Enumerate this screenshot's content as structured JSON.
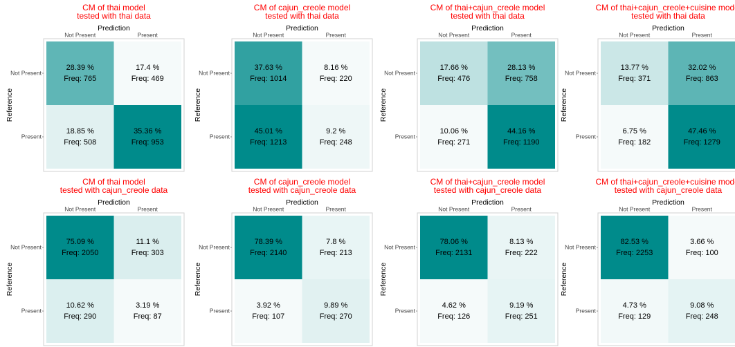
{
  "chart_data": [
    {
      "type": "heatmap",
      "title": [
        "CM of thai model",
        "tested with thai data"
      ],
      "xlabel": "Prediction",
      "ylabel": "Reference",
      "x_categories": [
        "Not Present",
        "Present"
      ],
      "y_categories": [
        "Not Present",
        "Present"
      ],
      "values": [
        [
          765,
          469
        ],
        [
          508,
          953
        ]
      ],
      "value_labels": [
        [
          "Freq: 765",
          "Freq: 469"
        ],
        [
          "Freq: 508",
          "Freq: 953"
        ]
      ],
      "percent": [
        [
          28.39,
          17.4
        ],
        [
          18.85,
          35.36
        ]
      ],
      "percent_labels": [
        [
          "28.39 %",
          "17.4 %"
        ],
        [
          "18.85 %",
          "35.36 %"
        ]
      ],
      "color": "#008b8b"
    },
    {
      "type": "heatmap",
      "title": [
        "CM of cajun_creole model",
        "tested with thai data"
      ],
      "xlabel": "Prediction",
      "ylabel": "Reference",
      "x_categories": [
        "Not Present",
        "Present"
      ],
      "y_categories": [
        "Not Present",
        "Present"
      ],
      "values": [
        [
          1014,
          220
        ],
        [
          1213,
          248
        ]
      ],
      "value_labels": [
        [
          "Freq: 1014",
          "Freq: 220"
        ],
        [
          "Freq: 1213",
          "Freq: 248"
        ]
      ],
      "percent": [
        [
          37.63,
          8.16
        ],
        [
          45.01,
          9.2
        ]
      ],
      "percent_labels": [
        [
          "37.63 %",
          "8.16 %"
        ],
        [
          "45.01 %",
          "9.2 %"
        ]
      ],
      "color": "#008b8b"
    },
    {
      "type": "heatmap",
      "title": [
        "CM of thai+cajun_creole model",
        "tested with thai data"
      ],
      "xlabel": "Prediction",
      "ylabel": "Reference",
      "x_categories": [
        "Not Present",
        "Present"
      ],
      "y_categories": [
        "Not Present",
        "Present"
      ],
      "values": [
        [
          476,
          758
        ],
        [
          271,
          1190
        ]
      ],
      "value_labels": [
        [
          "Freq: 476",
          "Freq: 758"
        ],
        [
          "Freq: 271",
          "Freq: 1190"
        ]
      ],
      "percent": [
        [
          17.66,
          28.13
        ],
        [
          10.06,
          44.16
        ]
      ],
      "percent_labels": [
        [
          "17.66 %",
          "28.13 %"
        ],
        [
          "10.06 %",
          "44.16 %"
        ]
      ],
      "color": "#008b8b"
    },
    {
      "type": "heatmap",
      "title": [
        "CM of thai+cajun_creole+cuisine model",
        "tested with thai data"
      ],
      "xlabel": "Prediction",
      "ylabel": "Reference",
      "x_categories": [
        "Not Present",
        "Present"
      ],
      "y_categories": [
        "Not Present",
        "Present"
      ],
      "values": [
        [
          371,
          863
        ],
        [
          182,
          1279
        ]
      ],
      "value_labels": [
        [
          "Freq: 371",
          "Freq: 863"
        ],
        [
          "Freq: 182",
          "Freq: 1279"
        ]
      ],
      "percent": [
        [
          13.77,
          32.02
        ],
        [
          6.75,
          47.46
        ]
      ],
      "percent_labels": [
        [
          "13.77 %",
          "32.02 %"
        ],
        [
          "6.75 %",
          "47.46 %"
        ]
      ],
      "color": "#008b8b"
    },
    {
      "type": "heatmap",
      "title": [
        "CM of thai model",
        "tested with cajun_creole data"
      ],
      "xlabel": "Prediction",
      "ylabel": "Reference",
      "x_categories": [
        "Not Present",
        "Present"
      ],
      "y_categories": [
        "Not Present",
        "Present"
      ],
      "values": [
        [
          2050,
          303
        ],
        [
          290,
          87
        ]
      ],
      "value_labels": [
        [
          "Freq: 2050",
          "Freq: 303"
        ],
        [
          "Freq: 290",
          "Freq: 87"
        ]
      ],
      "percent": [
        [
          75.09,
          11.1
        ],
        [
          10.62,
          3.19
        ]
      ],
      "percent_labels": [
        [
          "75.09 %",
          "11.1 %"
        ],
        [
          "10.62 %",
          "3.19 %"
        ]
      ],
      "color": "#008b8b"
    },
    {
      "type": "heatmap",
      "title": [
        "CM of cajun_creole model",
        "tested with cajun_creole data"
      ],
      "xlabel": "Prediction",
      "ylabel": "Reference",
      "x_categories": [
        "Not Present",
        "Present"
      ],
      "y_categories": [
        "Not Present",
        "Present"
      ],
      "values": [
        [
          2140,
          213
        ],
        [
          107,
          270
        ]
      ],
      "value_labels": [
        [
          "Freq: 2140",
          "Freq: 213"
        ],
        [
          "Freq: 107",
          "Freq: 270"
        ]
      ],
      "percent": [
        [
          78.39,
          7.8
        ],
        [
          3.92,
          9.89
        ]
      ],
      "percent_labels": [
        [
          "78.39 %",
          "7.8 %"
        ],
        [
          "3.92 %",
          "9.89 %"
        ]
      ],
      "color": "#008b8b"
    },
    {
      "type": "heatmap",
      "title": [
        "CM of thai+cajun_creole model",
        "tested with cajun_creole data"
      ],
      "xlabel": "Prediction",
      "ylabel": "Reference",
      "x_categories": [
        "Not Present",
        "Present"
      ],
      "y_categories": [
        "Not Present",
        "Present"
      ],
      "values": [
        [
          2131,
          222
        ],
        [
          126,
          251
        ]
      ],
      "value_labels": [
        [
          "Freq: 2131",
          "Freq: 222"
        ],
        [
          "Freq: 126",
          "Freq: 251"
        ]
      ],
      "percent": [
        [
          78.06,
          8.13
        ],
        [
          4.62,
          9.19
        ]
      ],
      "percent_labels": [
        [
          "78.06 %",
          "8.13 %"
        ],
        [
          "4.62 %",
          "9.19 %"
        ]
      ],
      "color": "#008b8b"
    },
    {
      "type": "heatmap",
      "title": [
        "CM of thai+cajun_creole+cuisine model",
        "tested with cajun_creole data"
      ],
      "xlabel": "Prediction",
      "ylabel": "Reference",
      "x_categories": [
        "Not Present",
        "Present"
      ],
      "y_categories": [
        "Not Present",
        "Present"
      ],
      "values": [
        [
          2253,
          100
        ],
        [
          129,
          248
        ]
      ],
      "value_labels": [
        [
          "Freq: 2253",
          "Freq: 100"
        ],
        [
          "Freq: 129",
          "Freq: 248"
        ]
      ],
      "percent": [
        [
          82.53,
          3.66
        ],
        [
          4.73,
          9.08
        ]
      ],
      "percent_labels": [
        [
          "82.53 %",
          "3.66 %"
        ],
        [
          "4.73 %",
          "9.08 %"
        ]
      ],
      "color": "#008b8b"
    }
  ]
}
